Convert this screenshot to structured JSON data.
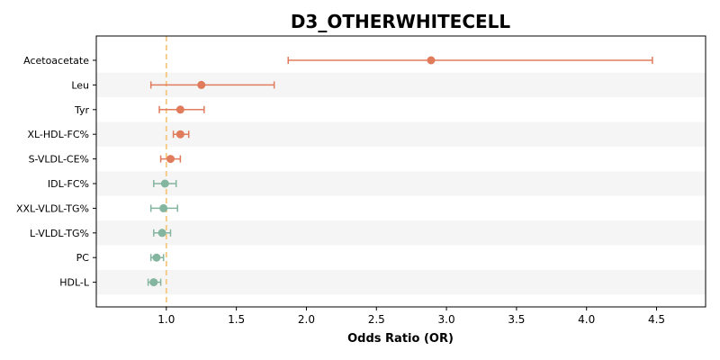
{
  "chart_data": {
    "type": "forest",
    "title": "D3_OTHERWHITECELL",
    "xlabel": "Odds Ratio (OR)",
    "ylabel": "",
    "xlim": [
      0.5,
      4.85
    ],
    "x_ticks": [
      "1.0",
      "1.5",
      "2.0",
      "2.5",
      "3.0",
      "3.5",
      "4.0",
      "4.5"
    ],
    "reference_line": 1.0,
    "grid": false,
    "colors": {
      "positive": "#e07b5b",
      "negative": "#84b59f",
      "reference": "#f5c77e",
      "band": "#f5f5f5"
    },
    "rows": [
      {
        "label": "Acetoacetate",
        "or": 2.89,
        "lower": 1.87,
        "upper": 4.47
      },
      {
        "label": "Leu",
        "or": 1.25,
        "lower": 0.89,
        "upper": 1.77
      },
      {
        "label": "Tyr",
        "or": 1.1,
        "lower": 0.95,
        "upper": 1.27
      },
      {
        "label": "XL-HDL-FC%",
        "or": 1.1,
        "lower": 1.05,
        "upper": 1.16
      },
      {
        "label": "S-VLDL-CE%",
        "or": 1.03,
        "lower": 0.96,
        "upper": 1.1
      },
      {
        "label": "IDL-FC%",
        "or": 0.99,
        "lower": 0.91,
        "upper": 1.07
      },
      {
        "label": "XXL-VLDL-TG%",
        "or": 0.98,
        "lower": 0.89,
        "upper": 1.08
      },
      {
        "label": "L-VLDL-TG%",
        "or": 0.97,
        "lower": 0.91,
        "upper": 1.03
      },
      {
        "label": "PC",
        "or": 0.93,
        "lower": 0.89,
        "upper": 0.98
      },
      {
        "label": "HDL-L",
        "or": 0.91,
        "lower": 0.87,
        "upper": 0.96
      }
    ]
  }
}
